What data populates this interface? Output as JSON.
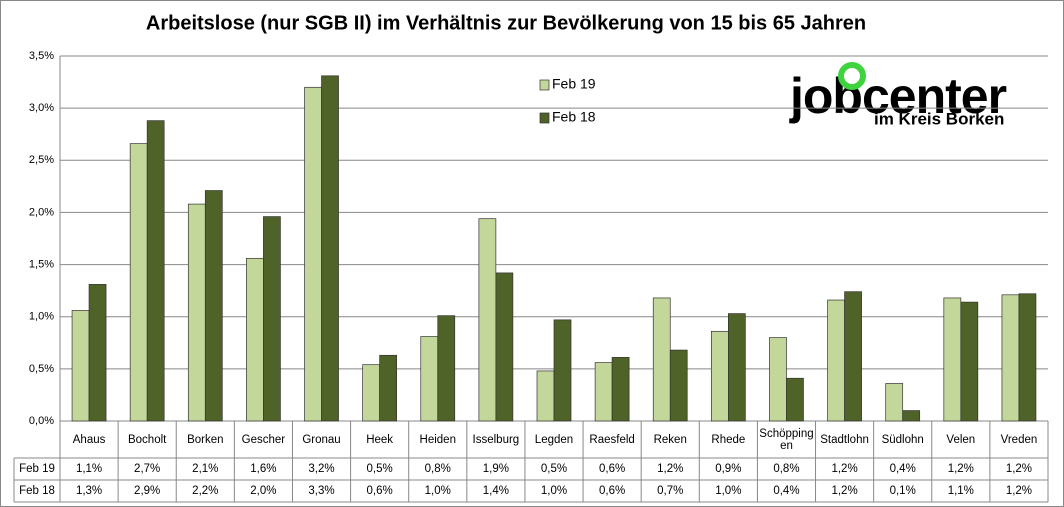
{
  "chart_data": {
    "type": "bar",
    "title": "Arbeitslose (nur SGB II) im Verhältnis zur Bevölkerung von 15 bis 65 Jahren",
    "categories": [
      "Ahaus",
      "Bocholt",
      "Borken",
      "Gescher",
      "Gronau",
      "Heek",
      "Heiden",
      "Isselburg",
      "Legden",
      "Raesfeld",
      "Reken",
      "Rhede",
      "Schöppingen",
      "Stadtlohn",
      "Südlohn",
      "Velen",
      "Vreden"
    ],
    "series": [
      {
        "name": "Feb 19",
        "color": "#c4d79b",
        "values": [
          1.06,
          2.66,
          2.08,
          1.56,
          3.2,
          0.54,
          0.81,
          1.94,
          0.48,
          0.56,
          1.18,
          0.86,
          0.8,
          1.16,
          0.36,
          1.18,
          1.21
        ],
        "value_labels": [
          "1,1%",
          "2,7%",
          "2,1%",
          "1,6%",
          "3,2%",
          "0,5%",
          "0,8%",
          "1,9%",
          "0,5%",
          "0,6%",
          "1,2%",
          "0,9%",
          "0,8%",
          "1,2%",
          "0,4%",
          "1,2%",
          "1,2%"
        ]
      },
      {
        "name": "Feb 18",
        "color": "#4f6228",
        "values": [
          1.31,
          2.88,
          2.21,
          1.96,
          3.31,
          0.63,
          1.01,
          1.42,
          0.97,
          0.61,
          0.68,
          1.03,
          0.41,
          1.24,
          0.1,
          1.14,
          1.22
        ],
        "value_labels": [
          "1,3%",
          "2,9%",
          "2,2%",
          "2,0%",
          "3,3%",
          "0,6%",
          "1,0%",
          "1,4%",
          "1,0%",
          "0,6%",
          "0,7%",
          "1,0%",
          "0,4%",
          "1,2%",
          "0,1%",
          "1,1%",
          "1,2%"
        ]
      }
    ],
    "ylim": [
      0,
      3.5
    ],
    "yticks": [
      {
        "value": 0,
        "label": "0,0%"
      },
      {
        "value": 0.5,
        "label": "0,5%"
      },
      {
        "value": 1,
        "label": "1,0%"
      },
      {
        "value": 1.5,
        "label": "1,5%"
      },
      {
        "value": 2,
        "label": "2,0%"
      },
      {
        "value": 2.5,
        "label": "2,5%"
      },
      {
        "value": 3,
        "label": "3,0%"
      },
      {
        "value": 3.5,
        "label": "3,5%"
      }
    ],
    "grid": true,
    "legend": "top",
    "logo": {
      "text": "jobcenter",
      "subtitle": "im Kreis Borken"
    }
  }
}
